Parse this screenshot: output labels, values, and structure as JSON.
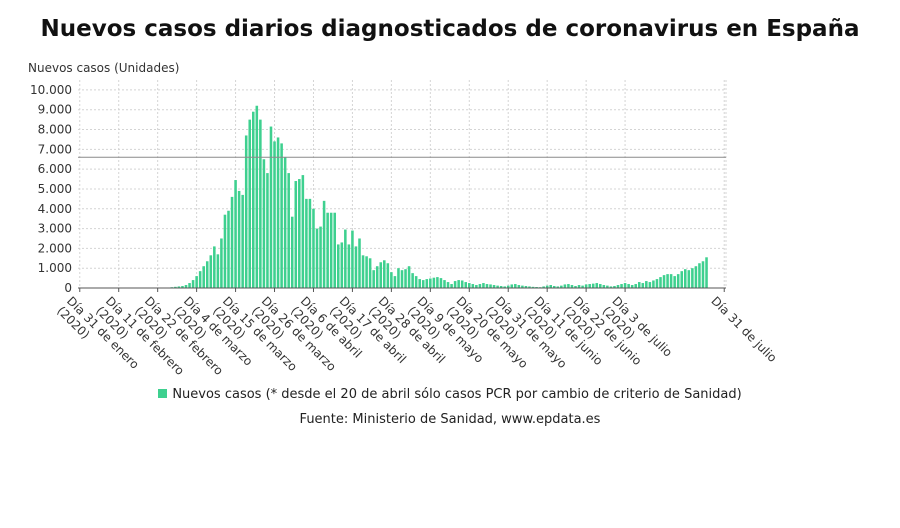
{
  "chart_data": {
    "type": "bar",
    "title": "Nuevos casos diarios diagnosticados de coronavirus en España",
    "ylabel": "Nuevos casos (Unidades)",
    "ylim": [
      0,
      10500
    ],
    "yticks": [
      0,
      1000,
      2000,
      3000,
      4000,
      5000,
      6000,
      7000,
      8000,
      9000,
      10000
    ],
    "ytick_labels": [
      "0",
      "1.000",
      "2.000",
      "3.000",
      "4.000",
      "5.000",
      "6.000",
      "7.000",
      "8.000",
      "9.000",
      "10.000"
    ],
    "reference_line": 6600,
    "grid": true,
    "x_start": "2020-01-31",
    "x_end": "2020-07-31",
    "xtick_labels": [
      {
        "date": "2020-01-31",
        "label": "Día 31 de enero (2020)"
      },
      {
        "date": "2020-02-11",
        "label": "Día 11 de febrero (2020)"
      },
      {
        "date": "2020-02-22",
        "label": "Día 22 de febrero (2020)"
      },
      {
        "date": "2020-03-04",
        "label": "Día 4 de marzo (2020)"
      },
      {
        "date": "2020-03-15",
        "label": "Día 15 de marzo (2020)"
      },
      {
        "date": "2020-03-26",
        "label": "Día 26 de marzo (2020)"
      },
      {
        "date": "2020-04-06",
        "label": "Día 6 de abril (2020)"
      },
      {
        "date": "2020-04-17",
        "label": "Día 17 de abril (2020)"
      },
      {
        "date": "2020-04-28",
        "label": "Día 28 de abril (2020)"
      },
      {
        "date": "2020-05-09",
        "label": "Día 9 de mayo (2020)"
      },
      {
        "date": "2020-05-20",
        "label": "Día 20 de mayo (2020)"
      },
      {
        "date": "2020-05-31",
        "label": "Día 31 de mayo (2020)"
      },
      {
        "date": "2020-06-11",
        "label": "Día 11 de junio (2020)"
      },
      {
        "date": "2020-06-22",
        "label": "Día 22 de junio (2020)"
      },
      {
        "date": "2020-07-03",
        "label": "Día 3 de julio (2020)"
      },
      {
        "date": "2020-07-31",
        "label": "Día 31 de julio"
      }
    ],
    "series": [
      {
        "name": "Nuevos casos (* desde el 20 de abril sólo casos PCR por cambio de criterio de Sanidad)",
        "color": "#3ed08f",
        "values": [
          0,
          0,
          0,
          0,
          0,
          0,
          0,
          0,
          0,
          0,
          0,
          0,
          0,
          0,
          0,
          0,
          0,
          0,
          0,
          0,
          0,
          0,
          0,
          0,
          10,
          20,
          40,
          60,
          80,
          100,
          150,
          250,
          400,
          600,
          850,
          1100,
          1350,
          1650,
          2100,
          1700,
          2500,
          3700,
          3900,
          4600,
          5450,
          4900,
          4700,
          7700,
          8500,
          8900,
          9200,
          8500,
          6500,
          5800,
          8150,
          7400,
          7600,
          7300,
          6600,
          5800,
          3600,
          5400,
          5500,
          5700,
          4500,
          4500,
          4000,
          3000,
          3100,
          4400,
          3800,
          3800,
          3800,
          2200,
          2300,
          2950,
          2200,
          2900,
          2100,
          2500,
          1650,
          1600,
          1500,
          900,
          1100,
          1300,
          1400,
          1250,
          800,
          600,
          1000,
          900,
          950,
          1100,
          750,
          600,
          450,
          400,
          450,
          480,
          520,
          550,
          500,
          400,
          300,
          200,
          350,
          400,
          380,
          300,
          250,
          200,
          150,
          200,
          250,
          200,
          180,
          150,
          120,
          100,
          80,
          120,
          180,
          200,
          150,
          120,
          100,
          80,
          60,
          50,
          40,
          80,
          120,
          150,
          100,
          80,
          120,
          180,
          200,
          150,
          100,
          150,
          120,
          180,
          200,
          220,
          250,
          200,
          150,
          120,
          80,
          100,
          150,
          200,
          250,
          200,
          150,
          200,
          300,
          250,
          350,
          300,
          380,
          450,
          550,
          650,
          700,
          700,
          600,
          700,
          850,
          950,
          900,
          1000,
          1100,
          1250,
          1350,
          1550
        ]
      }
    ],
    "source": "Fuente: Ministerio de Sanidad, www.epdata.es"
  }
}
